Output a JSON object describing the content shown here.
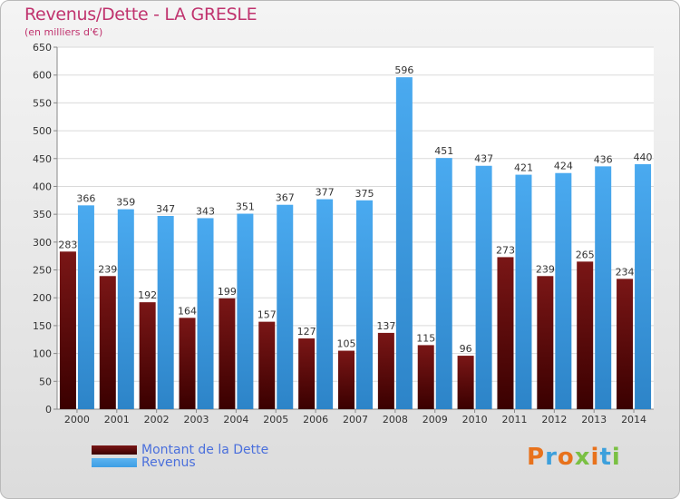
{
  "title": "Revenus/Dette - LA GRESLE",
  "subtitle": "(en milliers d'€)",
  "logo": {
    "text": "Proxiti",
    "colors": [
      "#e8721c",
      "#3da0dc",
      "#e8721c",
      "#7ac043",
      "#e8721c",
      "#3da0dc",
      "#7ac043"
    ]
  },
  "colors": {
    "dette": "#7a1616",
    "revenus": "#3d9ee4"
  },
  "chart_data": {
    "type": "bar",
    "title": "Revenus/Dette - LA GRESLE",
    "subtitle": "(en milliers d'€)",
    "categories": [
      "2000",
      "2001",
      "2002",
      "2003",
      "2004",
      "2005",
      "2006",
      "2007",
      "2008",
      "2009",
      "2010",
      "2011",
      "2012",
      "2013",
      "2014"
    ],
    "series": [
      {
        "name": "Montant de la Dette",
        "values": [
          283,
          239,
          192,
          164,
          199,
          157,
          127,
          105,
          137,
          115,
          96,
          273,
          239,
          265,
          234
        ]
      },
      {
        "name": "Revenus",
        "values": [
          366,
          359,
          347,
          343,
          351,
          367,
          377,
          375,
          596,
          451,
          437,
          421,
          424,
          436,
          440
        ]
      }
    ],
    "ylim": [
      0,
      650
    ],
    "yticks": [
      0,
      50,
      100,
      150,
      200,
      250,
      300,
      350,
      400,
      450,
      500,
      550,
      600,
      650
    ],
    "grid": true,
    "legend_position": "bottom-left"
  }
}
